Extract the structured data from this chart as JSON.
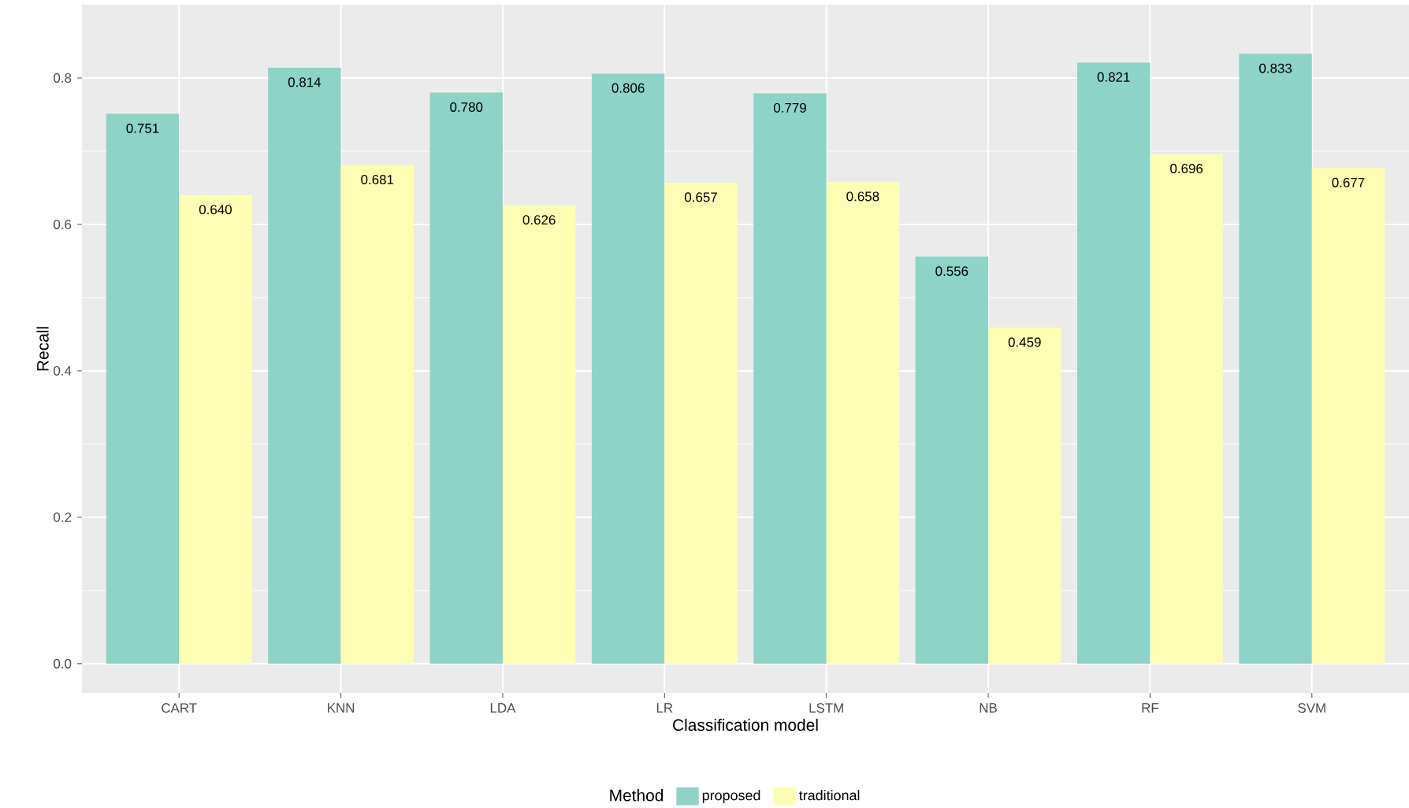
{
  "chart_data": {
    "type": "bar",
    "xlabel": "Classification model",
    "ylabel": "Recall",
    "legend_title": "Method",
    "categories": [
      "CART",
      "KNN",
      "LDA",
      "LR",
      "LSTM",
      "NB",
      "RF",
      "SVM"
    ],
    "series": [
      {
        "name": "proposed",
        "color": "#8dd3c7",
        "values": [
          0.751,
          0.814,
          0.78,
          0.806,
          0.779,
          0.556,
          0.821,
          0.833
        ],
        "value_labels": [
          "0.751",
          "0.814",
          "0.780",
          "0.806",
          "0.779",
          "0.556",
          "0.821",
          "0.833"
        ]
      },
      {
        "name": "traditional",
        "color": "#ffffb3",
        "values": [
          0.64,
          0.681,
          0.626,
          0.657,
          0.658,
          0.459,
          0.696,
          0.677
        ],
        "value_labels": [
          "0.640",
          "0.681",
          "0.626",
          "0.657",
          "0.658",
          "0.459",
          "0.696",
          "0.677"
        ]
      }
    ],
    "ylim": [
      -0.04,
      0.9
    ],
    "yticks": [
      {
        "value": 0,
        "label": "0.0"
      },
      0.2,
      0.4,
      0.6,
      0.8
    ],
    "grid": true,
    "legend": "bottom"
  }
}
